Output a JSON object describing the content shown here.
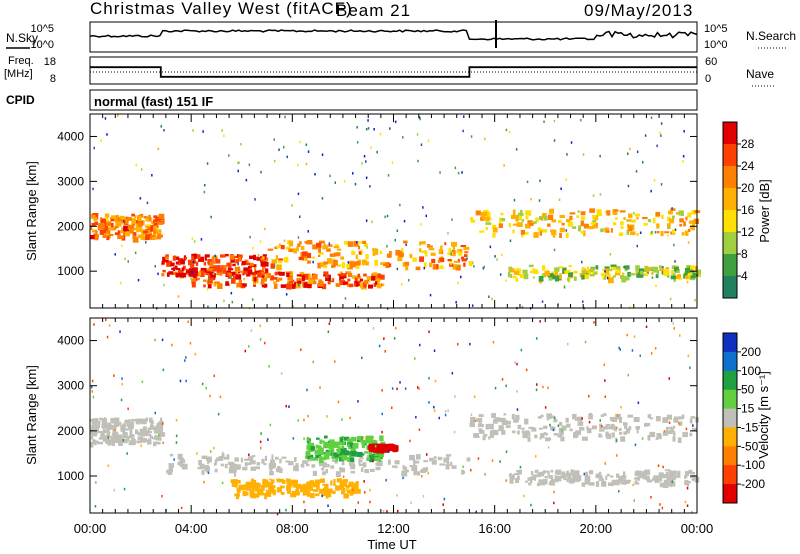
{
  "header": {
    "site": "Christmas Valley West (fitACF)",
    "beam": "Beam 21",
    "date": "09/May/2013"
  },
  "noise_panel": {
    "left_label": "N.Sky",
    "right_label": "N.Search",
    "ticks_left": [
      "10^5",
      "10^0"
    ],
    "ticks_right": [
      "10^5",
      "10^0"
    ]
  },
  "freq_panel": {
    "left_label_1": "Freq.",
    "left_label_2": "[MHz]",
    "right_label": "Nave",
    "ticks_left": [
      "18",
      "8"
    ],
    "ticks_right": [
      "60",
      "0"
    ]
  },
  "cpid": {
    "label": "CPID",
    "value": "normal (fast) 151 IF"
  },
  "power_panel": {
    "ylabel": "Slant Range [km]",
    "cbar_label": "Power [dB]",
    "cbar_ticks": [
      "28",
      "24",
      "20",
      "16",
      "12",
      "8",
      "4"
    ],
    "cbar_colors": [
      "#e00000",
      "#ff4000",
      "#ff8000",
      "#ffb000",
      "#ffe000",
      "#a0d040",
      "#40a040",
      "#208060",
      "#2050a0",
      "#1020d0"
    ]
  },
  "velocity_panel": {
    "ylabel": "Slant Range [km]",
    "cbar_label": "Velocity [m s⁻¹]",
    "cbar_ticks": [
      "200",
      "100",
      "50",
      "15",
      "-15",
      "-50",
      "-100",
      "-200"
    ],
    "cbar_colors": [
      "#1030c0",
      "#1070d0",
      "#20a040",
      "#60d040",
      "#c0c0b8",
      "#ffb000",
      "#ff8000",
      "#ff4000",
      "#e00000"
    ]
  },
  "xaxis": {
    "label": "Time UT",
    "ticks": [
      "00:00",
      "04:00",
      "08:00",
      "12:00",
      "16:00",
      "20:00",
      "00:00"
    ]
  },
  "chart_data": {
    "type": "heatmap",
    "title": "Christmas Valley West (fitACF)",
    "x": {
      "label": "Time UT",
      "range_hours": [
        0,
        24
      ],
      "ticks": [
        "00:00",
        "04:00",
        "08:00",
        "12:00",
        "16:00",
        "20:00",
        "00:00"
      ]
    },
    "y": {
      "label": "Slant Range [km]",
      "range": [
        180,
        4500
      ],
      "ticks": [
        1000,
        2000,
        3000,
        4000
      ]
    },
    "frequency_mhz": [
      {
        "start": 0,
        "end": 2.8,
        "value": 15
      },
      {
        "start": 2.8,
        "end": 15.0,
        "value": 11
      },
      {
        "start": 15.0,
        "end": 24,
        "value": 15
      }
    ],
    "power": {
      "unit": "dB",
      "scale": [
        0,
        32
      ],
      "bands": [
        {
          "t0": 0,
          "t1": 2.8,
          "r0": 1750,
          "r1": 2300,
          "db": 24
        },
        {
          "t0": 2.8,
          "t1": 7.0,
          "r0": 950,
          "r1": 1400,
          "db": 28
        },
        {
          "t0": 4.0,
          "t1": 11.5,
          "r0": 700,
          "r1": 1000,
          "db": 26
        },
        {
          "t0": 7.0,
          "t1": 15.0,
          "r0": 1100,
          "r1": 1700,
          "db": 22
        },
        {
          "t0": 15.0,
          "t1": 24,
          "r0": 1850,
          "r1": 2400,
          "db": 20
        },
        {
          "t0": 16.5,
          "t1": 24,
          "r0": 850,
          "r1": 1150,
          "db": 16
        }
      ]
    },
    "velocity": {
      "unit": "m s-1",
      "scale": [
        -200,
        200
      ],
      "bands": [
        {
          "t0": 0,
          "t1": 2.8,
          "r0": 1750,
          "r1": 2300,
          "v": 0
        },
        {
          "t0": 2.8,
          "t1": 15.0,
          "r0": 1100,
          "r1": 1500,
          "v": 0
        },
        {
          "t0": 5.5,
          "t1": 10.5,
          "r0": 600,
          "r1": 950,
          "v": -50
        },
        {
          "t0": 8.5,
          "t1": 11.5,
          "r0": 1400,
          "r1": 1900,
          "v": 60
        },
        {
          "t0": 11.0,
          "t1": 12.0,
          "r0": 1620,
          "r1": 1720,
          "v": -200
        },
        {
          "t0": 15.0,
          "t1": 24,
          "r0": 1850,
          "r1": 2400,
          "v": 0
        },
        {
          "t0": 16.5,
          "t1": 24,
          "r0": 850,
          "r1": 1150,
          "v": 0
        }
      ]
    }
  }
}
